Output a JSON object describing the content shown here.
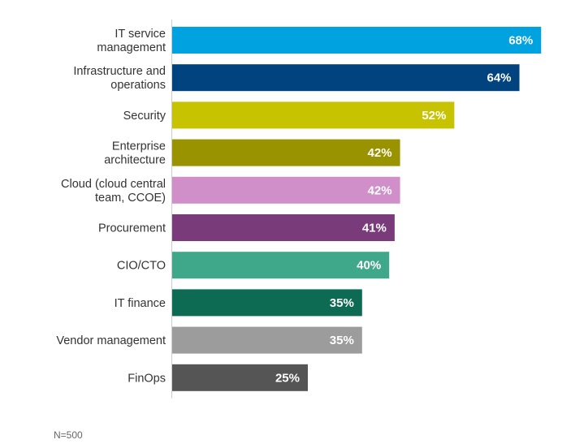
{
  "chart_data": {
    "type": "bar",
    "orientation": "horizontal",
    "title": "",
    "xlabel": "",
    "ylabel": "",
    "xlim": [
      0,
      100
    ],
    "grid": false,
    "legend": "none",
    "value_suffix": "%",
    "categories": [
      [
        "IT service",
        "management"
      ],
      [
        "Infrastructure and",
        "operations"
      ],
      [
        "Security"
      ],
      [
        "Enterprise",
        "architecture"
      ],
      [
        "Cloud (cloud central",
        "team, CCOE)"
      ],
      [
        "Procurement"
      ],
      [
        "CIO/CTO"
      ],
      [
        "IT finance"
      ],
      [
        "Vendor management"
      ],
      [
        "FinOps"
      ]
    ],
    "values": [
      68,
      64,
      52,
      42,
      42,
      41,
      40,
      35,
      35,
      25
    ],
    "value_labels": [
      "68%",
      "64%",
      "52%",
      "42%",
      "42%",
      "41%",
      "40%",
      "35%",
      "35%",
      "25%"
    ],
    "colors": [
      "#00a3e0",
      "#00437f",
      "#c7c300",
      "#9a9300",
      "#d08fc8",
      "#7a3b7a",
      "#40a88a",
      "#0d6b53",
      "#9c9c9c",
      "#555555"
    ],
    "axis_color": "#cccccc"
  },
  "footnote": "N=500"
}
